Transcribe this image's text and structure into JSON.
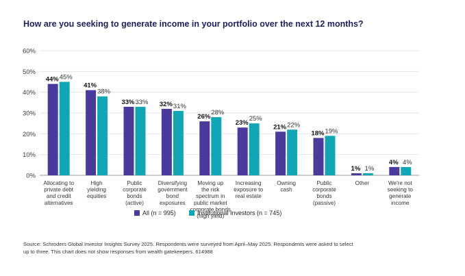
{
  "chart_data": {
    "type": "bar",
    "title": "How are you seeking to generate income in your portfolio over the next 12 months?",
    "ylim": [
      0,
      60
    ],
    "yticks": [
      "0%",
      "10%",
      "20%",
      "30%",
      "40%",
      "50%",
      "60%"
    ],
    "ytick_values": [
      0,
      10,
      20,
      30,
      40,
      50,
      60
    ],
    "categories": [
      [
        "Allocating to",
        "private debt",
        "and credit",
        "alternatives"
      ],
      [
        "High",
        "yielding",
        "equities"
      ],
      [
        "Public",
        "corporate",
        "bonds",
        "(active)"
      ],
      [
        "Diversifying",
        "government",
        "bond",
        "exposures"
      ],
      [
        "Moving up",
        "the risk",
        "spectrum in",
        "public market",
        "corporate bonds",
        "(high yield)"
      ],
      [
        "Increasing",
        "exposure to",
        "real estate"
      ],
      [
        "Owning",
        "cash"
      ],
      [
        "Public",
        "corporate",
        "bonds",
        "(passive)"
      ],
      [
        "Other"
      ],
      [
        "We're not",
        "seeking to",
        "generate",
        "income"
      ]
    ],
    "series": [
      {
        "name": "All (n = 995)",
        "color": "#4a3a9c",
        "values": [
          44,
          41,
          33,
          32,
          26,
          23,
          21,
          18,
          1,
          4
        ],
        "labels": [
          "44%",
          "41%",
          "33%",
          "32%",
          "26%",
          "23%",
          "21%",
          "18%",
          "1%",
          "4%"
        ]
      },
      {
        "name": "Institutional Investors (n = 745)",
        "color": "#12a6b4",
        "values": [
          45,
          38,
          33,
          31,
          28,
          25,
          22,
          19,
          1,
          4
        ],
        "labels": [
          "45%",
          "38%",
          "33%",
          "31%",
          "28%",
          "25%",
          "22%",
          "19%",
          "1%",
          "4%"
        ]
      }
    ],
    "legend_position": "bottom-center",
    "source": [
      "Source: Schroders Global Investor Insights Survey 2025. Respondents were surveyed from April–May 2025. Respondents were asked to select",
      "up to three. This chart does not show responses from wealth gatekeepers. 614988"
    ]
  }
}
